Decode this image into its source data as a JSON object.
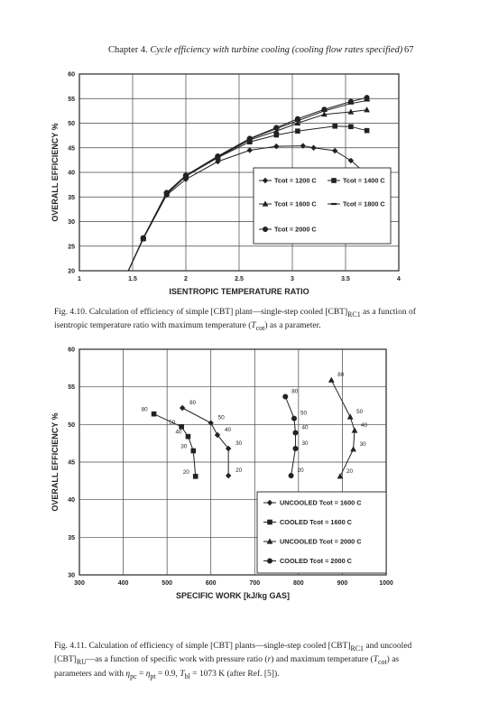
{
  "header": {
    "chapter": "Chapter 4.",
    "title": "Cycle efficiency with turbine cooling (cooling flow rates specified)",
    "page_number": "67"
  },
  "colors": {
    "ink": "#222222",
    "grid": "#444444",
    "background": "#ffffff"
  },
  "chart_data": [
    {
      "type": "line",
      "xlabel": "ISENTROPIC TEMPERATURE RATIO",
      "ylabel": "OVERALL EFFICIENCY %",
      "xlim": [
        1,
        4
      ],
      "ylim": [
        20,
        60
      ],
      "x_ticks": [
        "1",
        "1.5",
        "2",
        "2.5",
        "3",
        "3.5",
        "4"
      ],
      "y_ticks": [
        "20",
        "25",
        "30",
        "35",
        "40",
        "45",
        "50",
        "55",
        "60"
      ],
      "grid": true,
      "legend_position": "right",
      "series": [
        {
          "name": "Tcot = 1200 C",
          "marker": "diamond",
          "x": [
            1.46,
            1.6,
            1.82,
            2.0,
            2.3,
            2.6,
            2.85,
            3.1,
            3.2,
            3.4,
            3.55,
            3.7
          ],
          "y": [
            20,
            26.5,
            35.4,
            38.6,
            42.2,
            44.5,
            45.3,
            45.4,
            45,
            44.4,
            42.4,
            39.6
          ]
        },
        {
          "name": "Tcot = 1400 C",
          "marker": "square",
          "x": [
            1.46,
            1.6,
            1.82,
            2.0,
            2.3,
            2.6,
            2.85,
            3.05,
            3.4,
            3.55,
            3.7
          ],
          "y": [
            20,
            26.5,
            35.6,
            39.2,
            43,
            46.2,
            47.6,
            48.4,
            49.4,
            49.3,
            48.5
          ]
        },
        {
          "name": "Tcot = 1600 C",
          "marker": "triangle",
          "x": [
            1.46,
            1.6,
            1.82,
            2.0,
            2.3,
            2.6,
            2.85,
            3.05,
            3.3,
            3.55,
            3.7
          ],
          "y": [
            20,
            26.6,
            35.8,
            39.3,
            43.1,
            46.6,
            48.4,
            50,
            51.8,
            52.3,
            52.7
          ]
        },
        {
          "name": "Tcot = 1800 C",
          "marker": "dash",
          "x": [
            1.46,
            1.6,
            1.82,
            2.0,
            2.3,
            2.6,
            2.85,
            3.05,
            3.3,
            3.55,
            3.7
          ],
          "y": [
            20,
            26.6,
            35.8,
            39.3,
            43.2,
            46.8,
            48.9,
            50.5,
            52.5,
            54,
            54.6
          ]
        },
        {
          "name": "Tcot = 2000 C",
          "marker": "circle",
          "x": [
            1.46,
            1.6,
            1.82,
            2.0,
            2.3,
            2.6,
            2.85,
            3.05,
            3.3,
            3.55,
            3.7
          ],
          "y": [
            20,
            26.7,
            35.9,
            39.4,
            43.3,
            46.9,
            49.1,
            50.9,
            52.8,
            54.4,
            55.2
          ]
        }
      ]
    },
    {
      "type": "line",
      "xlabel": "SPECIFIC WORK [kJ/kg GAS]",
      "ylabel": "OVERALL EFFICIENCY %",
      "xlim": [
        300,
        1000
      ],
      "ylim": [
        30,
        60
      ],
      "x_ticks": [
        "300",
        "400",
        "500",
        "600",
        "700",
        "800",
        "900",
        "1000"
      ],
      "y_ticks": [
        "30",
        "35",
        "40",
        "45",
        "50",
        "55",
        "60"
      ],
      "grid": true,
      "legend_position": "bottom-right",
      "series": [
        {
          "name": "UNCOOLED Tcot = 1600 C",
          "marker": "diamond",
          "x": [
            535,
            600,
            615,
            640,
            640
          ],
          "y": [
            52.2,
            50.2,
            48.6,
            46.8,
            43.2
          ],
          "point_labels": [
            "80",
            "50",
            "40",
            "30",
            "20"
          ]
        },
        {
          "name": "COOLED Tcot = 1600 C",
          "marker": "square",
          "x": [
            470,
            533,
            548,
            560,
            565
          ],
          "y": [
            51.4,
            49.7,
            48.4,
            46.5,
            43.1
          ],
          "point_labels": [
            "80",
            "50",
            "40",
            "30",
            "20"
          ]
        },
        {
          "name": "UNCOOLED Tcot = 2000 C",
          "marker": "triangle",
          "x": [
            875,
            918,
            928,
            925,
            895
          ],
          "y": [
            55.9,
            51,
            49.2,
            46.7,
            43.1
          ],
          "point_labels": [
            "80",
            "50",
            "40",
            "30",
            "20"
          ]
        },
        {
          "name": "COOLED Tcot = 2000 C",
          "marker": "circle",
          "x": [
            770,
            790,
            793,
            793,
            783
          ],
          "y": [
            53.7,
            50.8,
            48.9,
            46.8,
            43.2
          ],
          "point_labels": [
            "80",
            "50",
            "40",
            "30",
            "20"
          ]
        }
      ]
    }
  ],
  "captions": {
    "fig1": {
      "label": "Fig. 4.10.",
      "text": "Calculation of efficiency of simple [CBT] plant—single-step cooled [CBT]",
      "sub1": "RC1",
      "text2": " as a function of isentropic temperature ratio with maximum temperature (",
      "t_var": "T",
      "t_sub": "cot",
      "text3": ") as a parameter."
    },
    "fig2": {
      "label": "Fig. 4.11.",
      "p1": "Calculation of efficiency of simple [CBT] plants—single-step cooled [CBT]",
      "sub1": "RC1",
      "p2": " and uncooled [CBT]",
      "sub2": "RU",
      "p3": "—as a function of specific work with pressure ratio (",
      "r_var": "r",
      "p4": ") and maximum temperature (",
      "t_var": "T",
      "t_sub": "cot",
      "p5": ") as parameters and with ",
      "eta": "η",
      "eta_sub1": "pc",
      "p6": " = ",
      "eta_sub2": "pt",
      "p7": " = 0.9, ",
      "tbl": "T",
      "tbl_sub": "bl",
      "p8": " = 1073 K (after Ref. [5])."
    }
  }
}
